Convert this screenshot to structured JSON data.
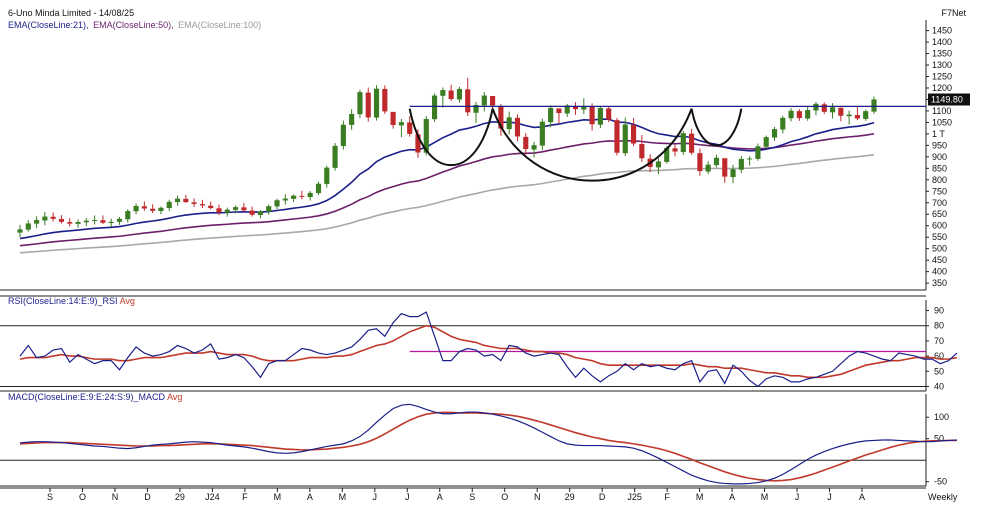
{
  "header": {
    "title": "6-Uno Minda Limited - 14/08/25",
    "brand": "F7Net",
    "ema_legend": [
      {
        "text": "EMA(CloseLine:21),",
        "color": "#1b1f8a"
      },
      {
        "text": "EMA(CloseLine:50),",
        "color": "#6b1f6b"
      },
      {
        "text": "EMA(CloseLine:100)",
        "color": "#9a9a9a"
      }
    ]
  },
  "rsi_legend": [
    {
      "text": "RSI(CloseLine:14:E:9)_RSI",
      "color": "#1b1f8a"
    },
    {
      "text": "Avg",
      "color": "#c0392b"
    }
  ],
  "macd_legend": [
    {
      "text": "MACD(CloseLine:E:9:E:24:S:9)_MACD",
      "color": "#1b1f8a"
    },
    {
      "text": "Avg",
      "color": "#c0392b"
    }
  ],
  "colors": {
    "up": "#3a7d22",
    "down": "#c0292b",
    "ema21": "#1b1f8a",
    "ema50": "#6b1f6b",
    "ema100": "#a8a8a8",
    "rsi": "#1b1f8a",
    "rsi_avg": "#c0392b",
    "macd": "#1b1f8a",
    "macd_avg": "#c0392b",
    "resistance": "#1b1f8a",
    "rsi_resistance": "#b5179e"
  },
  "chart_data": [
    {
      "type": "candlestick",
      "title": "6-Uno Minda Limited - 14/08/25",
      "timeframe": "Weekly",
      "ylim": [
        320,
        1470
      ],
      "y_ticks": [
        "1450",
        "1400",
        "1350",
        "1300",
        "1250",
        "1200",
        "1150",
        "1100",
        "1050",
        "1 T",
        "950",
        "900",
        "850",
        "800",
        "750",
        "700",
        "650",
        "600",
        "550",
        "500",
        "450",
        "400",
        "350"
      ],
      "x_ticks": [
        "S",
        "O",
        "N",
        "D",
        "29",
        "J24",
        "F",
        "M",
        "A",
        "M",
        "J",
        "J",
        "A",
        "S",
        "O",
        "N",
        "29",
        "D",
        "J25",
        "F",
        "M",
        "A",
        "M",
        "J",
        "J",
        "A"
      ],
      "last_price_label": "1149.80",
      "last_price": 1149.8,
      "resistance_level": 1120,
      "candles": [
        [
          570,
          603,
          549,
          584
        ],
        [
          583,
          624,
          574,
          610
        ],
        [
          609,
          641,
          590,
          625
        ],
        [
          623,
          660,
          602,
          640
        ],
        [
          639,
          658,
          618,
          630
        ],
        [
          629,
          646,
          609,
          617
        ],
        [
          616,
          633,
          597,
          609
        ],
        [
          608,
          627,
          591,
          616
        ],
        [
          615,
          634,
          599,
          622
        ],
        [
          621,
          645,
          606,
          625
        ],
        [
          624,
          645,
          607,
          613
        ],
        [
          612,
          631,
          596,
          617
        ],
        [
          617,
          638,
          604,
          630
        ],
        [
          628,
          672,
          614,
          664
        ],
        [
          663,
          697,
          650,
          686
        ],
        [
          685,
          706,
          665,
          675
        ],
        [
          674,
          693,
          655,
          665
        ],
        [
          664,
          684,
          650,
          678
        ],
        [
          677,
          713,
          664,
          704
        ],
        [
          703,
          731,
          687,
          718
        ],
        [
          717,
          734,
          699,
          703
        ],
        [
          702,
          719,
          682,
          695
        ],
        [
          694,
          713,
          677,
          688
        ],
        [
          687,
          705,
          671,
          677
        ],
        [
          676,
          692,
          646,
          658
        ],
        [
          657,
          679,
          640,
          670
        ],
        [
          669,
          688,
          654,
          681
        ],
        [
          680,
          699,
          660,
          667
        ],
        [
          666,
          683,
          640,
          648
        ],
        [
          647,
          668,
          632,
          662
        ],
        [
          661,
          692,
          648,
          685
        ],
        [
          684,
          718,
          672,
          711
        ],
        [
          710,
          737,
          692,
          718
        ],
        [
          717,
          736,
          703,
          731
        ],
        [
          730,
          752,
          715,
          726
        ],
        [
          725,
          751,
          710,
          743
        ],
        [
          742,
          792,
          733,
          783
        ],
        [
          782,
          861,
          766,
          853
        ],
        [
          852,
          960,
          840,
          948
        ],
        [
          947,
          1058,
          932,
          1040
        ],
        [
          1039,
          1108,
          1018,
          1087
        ],
        [
          1086,
          1192,
          1069,
          1182
        ],
        [
          1180,
          1202,
          1053,
          1072
        ],
        [
          1071,
          1212,
          1058,
          1197
        ],
        [
          1196,
          1211,
          1087,
          1098
        ],
        [
          1096,
          1095,
          1023,
          1039
        ],
        [
          1037,
          1065,
          986,
          1051
        ],
        [
          1050,
          1077,
          988,
          1000
        ],
        [
          998,
          1020,
          896,
          919
        ],
        [
          918,
          1078,
          907,
          1065
        ],
        [
          1064,
          1176,
          1052,
          1167
        ],
        [
          1166,
          1202,
          1114,
          1191
        ],
        [
          1189,
          1214,
          1143,
          1152
        ],
        [
          1150,
          1205,
          1136,
          1196
        ],
        [
          1194,
          1244,
          1078,
          1094
        ],
        [
          1092,
          1139,
          1048,
          1126
        ],
        [
          1124,
          1182,
          1098,
          1167
        ],
        [
          1165,
          1159,
          1102,
          1124
        ],
        [
          1122,
          1130,
          991,
          1023
        ],
        [
          1021,
          1097,
          998,
          1072
        ],
        [
          1070,
          1085,
          968,
          989
        ],
        [
          987,
          1003,
          910,
          934
        ],
        [
          932,
          965,
          897,
          951
        ],
        [
          949,
          1066,
          929,
          1053
        ],
        [
          1051,
          1125,
          1029,
          1113
        ],
        [
          1111,
          1111,
          1044,
          1091
        ],
        [
          1089,
          1131,
          1074,
          1124
        ],
        [
          1122,
          1138,
          1083,
          1108
        ],
        [
          1106,
          1155,
          1087,
          1121
        ],
        [
          1119,
          1133,
          1014,
          1042
        ],
        [
          1040,
          1122,
          1025,
          1113
        ],
        [
          1111,
          1118,
          1051,
          1062
        ],
        [
          1060,
          1070,
          906,
          918
        ],
        [
          916,
          1071,
          904,
          1041
        ],
        [
          1039,
          1070,
          946,
          958
        ],
        [
          956,
          995,
          879,
          894
        ],
        [
          892,
          911,
          834,
          856
        ],
        [
          854,
          894,
          825,
          880
        ],
        [
          878,
          947,
          871,
          939
        ],
        [
          937,
          955,
          902,
          923
        ],
        [
          921,
          1013,
          908,
          1003
        ],
        [
          1001,
          1022,
          909,
          918
        ],
        [
          916,
          936,
          818,
          838
        ],
        [
          836,
          881,
          825,
          866
        ],
        [
          864,
          909,
          854,
          896
        ],
        [
          894,
          885,
          787,
          814
        ],
        [
          812,
          865,
          785,
          846
        ],
        [
          844,
          904,
          830,
          891
        ],
        [
          889,
          903,
          862,
          893
        ],
        [
          891,
          958,
          883,
          946
        ],
        [
          944,
          993,
          936,
          986
        ],
        [
          984,
          1030,
          970,
          1021
        ],
        [
          1019,
          1079,
          1002,
          1070
        ],
        [
          1068,
          1112,
          1054,
          1101
        ],
        [
          1099,
          1108,
          1057,
          1069
        ],
        [
          1067,
          1119,
          1057,
          1104
        ],
        [
          1102,
          1139,
          1081,
          1131
        ],
        [
          1129,
          1137,
          1087,
          1096
        ],
        [
          1094,
          1134,
          1067,
          1116
        ],
        [
          1114,
          1114,
          1055,
          1079
        ],
        [
          1077,
          1101,
          1041,
          1084
        ],
        [
          1082,
          1117,
          1060,
          1067
        ],
        [
          1065,
          1106,
          1057,
          1099
        ],
        [
          1097,
          1163,
          1087,
          1150
        ]
      ],
      "ema21_end": 1020,
      "ema50_end": 955,
      "ema100_end": 885
    },
    {
      "type": "line",
      "title": "RSI(CloseLine:14:E:9)_RSI Avg",
      "ylim": [
        37,
        93
      ],
      "y_ticks": [
        "90",
        "80",
        "70",
        "60",
        "50",
        "40"
      ],
      "reference_lines": [
        80,
        40
      ],
      "resistance_level": 63,
      "series": [
        {
          "name": "RSI",
          "values": [
            60,
            67,
            59,
            60,
            64,
            65,
            56,
            61,
            58,
            55,
            57,
            57,
            51,
            59,
            66,
            62,
            60,
            61,
            63,
            67,
            65,
            62,
            64,
            68,
            58,
            59,
            61,
            59,
            53,
            46,
            55,
            57,
            57,
            61,
            65,
            64,
            62,
            61,
            62,
            64,
            66,
            71,
            77,
            78,
            73,
            82,
            88,
            86,
            86,
            89,
            73,
            57,
            57,
            63,
            65,
            64,
            60,
            61,
            57,
            67,
            66,
            62,
            60,
            61,
            62,
            61,
            53,
            46,
            52,
            47,
            43,
            47,
            50,
            55,
            51,
            55,
            53,
            54,
            52,
            51,
            55,
            57,
            43,
            50,
            51,
            42,
            54,
            50,
            44,
            40,
            45,
            47,
            46,
            43,
            43,
            45,
            46,
            48,
            50,
            55,
            60,
            63,
            62,
            60,
            58,
            57,
            62,
            61,
            60,
            58,
            58,
            55,
            57,
            62
          ]
        },
        {
          "name": "Avg",
          "values": [
            58,
            59,
            59,
            59,
            60,
            61,
            60,
            60,
            59,
            58,
            58,
            58,
            57,
            57,
            58,
            59,
            59,
            59,
            60,
            61,
            62,
            62,
            62,
            63,
            62,
            61,
            61,
            61,
            60,
            58,
            57,
            57,
            57,
            57,
            58,
            59,
            59,
            59,
            60,
            60,
            61,
            63,
            65,
            67,
            68,
            70,
            73,
            76,
            78,
            80,
            79,
            76,
            73,
            71,
            70,
            69,
            67,
            66,
            65,
            65,
            65,
            64,
            63,
            63,
            62,
            62,
            61,
            59,
            58,
            57,
            55,
            54,
            54,
            54,
            54,
            54,
            54,
            54,
            54,
            54,
            54,
            55,
            54,
            53,
            53,
            52,
            52,
            52,
            51,
            50,
            49,
            49,
            48,
            47,
            47,
            46,
            46,
            46,
            47,
            48,
            50,
            52,
            54,
            55,
            56,
            57,
            57,
            58,
            59,
            59,
            59,
            58,
            58,
            59
          ]
        }
      ]
    },
    {
      "type": "line",
      "title": "MACD(CloseLine:E:9:E:24:S:9)_MACD Avg",
      "ylim": [
        -60,
        140
      ],
      "y_ticks": [
        "100",
        "50",
        "-50"
      ],
      "reference_lines": [
        0
      ],
      "series": [
        {
          "name": "MACD",
          "values": [
            40,
            42,
            43,
            43,
            42,
            41,
            39,
            37,
            35,
            33,
            32,
            30,
            28,
            27,
            29,
            32,
            35,
            37,
            38,
            40,
            42,
            43,
            42,
            41,
            38,
            35,
            33,
            31,
            28,
            24,
            20,
            17,
            16,
            17,
            20,
            24,
            28,
            32,
            35,
            38,
            45,
            55,
            70,
            88,
            105,
            120,
            128,
            130,
            125,
            118,
            112,
            108,
            108,
            110,
            112,
            112,
            110,
            107,
            103,
            98,
            92,
            84,
            75,
            65,
            55,
            45,
            38,
            35,
            34,
            34,
            34,
            33,
            32,
            31,
            28,
            22,
            14,
            5,
            -5,
            -15,
            -25,
            -35,
            -42,
            -48,
            -52,
            -54,
            -55,
            -55,
            -54,
            -52,
            -48,
            -42,
            -33,
            -22,
            -10,
            2,
            12,
            20,
            27,
            33,
            38,
            42,
            45,
            46,
            47,
            47,
            46,
            45,
            44,
            43,
            43,
            45,
            46,
            47
          ]
        },
        {
          "name": "Avg",
          "values": [
            38,
            39,
            40,
            41,
            41,
            41,
            41,
            40,
            39,
            38,
            37,
            36,
            35,
            34,
            33,
            33,
            33,
            34,
            34,
            35,
            36,
            37,
            38,
            38,
            38,
            37,
            36,
            35,
            34,
            32,
            30,
            28,
            26,
            25,
            24,
            24,
            25,
            26,
            28,
            30,
            33,
            37,
            43,
            51,
            61,
            72,
            83,
            93,
            101,
            107,
            110,
            111,
            111,
            110,
            110,
            110,
            109,
            108,
            107,
            105,
            102,
            98,
            93,
            88,
            82,
            76,
            70,
            64,
            59,
            54,
            50,
            46,
            43,
            41,
            38,
            35,
            31,
            27,
            22,
            16,
            9,
            2,
            -6,
            -13,
            -20,
            -27,
            -33,
            -38,
            -42,
            -45,
            -47,
            -48,
            -47,
            -45,
            -41,
            -36,
            -30,
            -23,
            -16,
            -9,
            -2,
            5,
            12,
            18,
            24,
            30,
            35,
            39,
            42,
            44,
            45,
            45,
            46,
            46
          ]
        }
      ]
    }
  ]
}
